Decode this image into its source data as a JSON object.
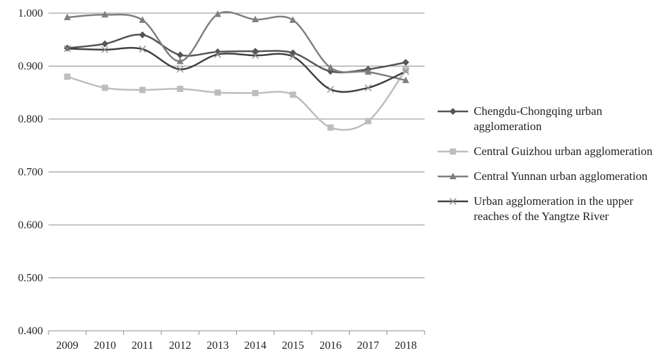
{
  "chart_data": {
    "type": "line",
    "title": "",
    "xlabel": "",
    "ylabel": "",
    "categories": [
      "2009",
      "2010",
      "2011",
      "2012",
      "2013",
      "2014",
      "2015",
      "2016",
      "2017",
      "2018"
    ],
    "ylim": [
      0.4,
      1.0
    ],
    "yticks": [
      "0.400",
      "0.500",
      "0.600",
      "0.700",
      "0.800",
      "0.900",
      "1.000"
    ],
    "grid": true,
    "legend_position": "right",
    "series": [
      {
        "name": "Chengdu-Chongqing urban agglomeration",
        "marker": "diamond",
        "color": "#555555",
        "values": [
          0.934,
          0.942,
          0.959,
          0.921,
          0.927,
          0.928,
          0.925,
          0.89,
          0.894,
          0.907
        ]
      },
      {
        "name": "Central Guizhou urban agglomeration",
        "marker": "square",
        "color": "#bdbdbd",
        "values": [
          0.88,
          0.859,
          0.855,
          0.857,
          0.85,
          0.849,
          0.846,
          0.784,
          0.796,
          0.893
        ]
      },
      {
        "name": "Central Yunnan urban agglomeration",
        "marker": "triangle",
        "color": "#7f7f7f",
        "values": [
          0.992,
          0.997,
          0.987,
          0.909,
          0.998,
          0.988,
          0.987,
          0.897,
          0.889,
          0.873
        ]
      },
      {
        "name": "Urban agglomeration in the upper reaches of the Yangtze River",
        "marker": "x",
        "color": "#404040",
        "values": [
          0.933,
          0.931,
          0.932,
          0.894,
          0.922,
          0.92,
          0.918,
          0.856,
          0.859,
          0.89
        ]
      }
    ]
  }
}
